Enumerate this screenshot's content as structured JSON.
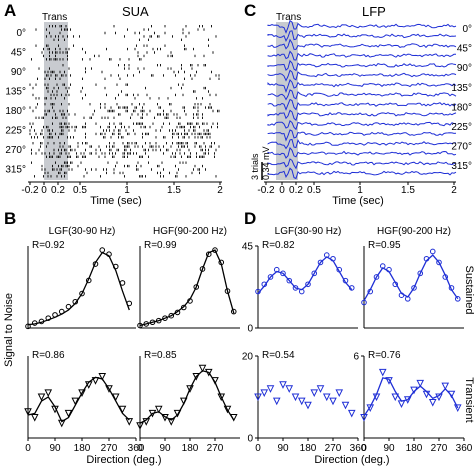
{
  "colors": {
    "black": "#000000",
    "blue": "#1f2fd6",
    "trans_shade": "#c8cbd0"
  },
  "panelA": {
    "letter": "A",
    "title": "SUA",
    "trans_label": "Trans",
    "directions": [
      "0°",
      "45°",
      "90°",
      "135°",
      "180°",
      "225°",
      "270°",
      "315°"
    ],
    "xticks": [
      "-0.2",
      "0",
      "0.2",
      "0.5",
      "1",
      "1.5",
      "2"
    ],
    "xlabel": "Time (sec)"
  },
  "panelC": {
    "letter": "C",
    "title": "LFP",
    "trans_label": "Trans",
    "directions": [
      "0°",
      "45°",
      "90°",
      "135°",
      "180°",
      "225°",
      "270°",
      "315°"
    ],
    "xticks": [
      "-0.2",
      "0",
      "0.2",
      "0.5",
      "1",
      "1.5",
      "2"
    ],
    "xlabel": "Time (sec)",
    "scale_trials": "3 trials",
    "scale_mv": "0.34 mV"
  },
  "panelB": {
    "letter": "B",
    "ylabel": "Signal to Noise"
  },
  "panelD": {
    "letter": "D",
    "side_sustained": "Sustained",
    "side_transient": "Transient"
  },
  "chart_data": [
    {
      "id": "B-sustained-LGF",
      "type": "scatter",
      "title": "LGF(30-90 Hz)",
      "annotation": "R=0.92",
      "xlabel": "",
      "ylabel": "Signal to Noise",
      "xlim": [
        0,
        360
      ],
      "marker": "circle",
      "color": "#000000",
      "x": [
        0,
        22.5,
        45,
        67.5,
        90,
        112.5,
        135,
        157.5,
        180,
        202.5,
        225,
        247.5,
        270,
        292.5,
        315,
        337.5
      ],
      "y": [
        0.02,
        0.06,
        0.08,
        0.12,
        0.16,
        0.2,
        0.26,
        0.32,
        0.42,
        0.58,
        0.78,
        0.95,
        0.9,
        0.75,
        0.55,
        0.3
      ],
      "fit": [
        0.04,
        0.05,
        0.07,
        0.1,
        0.13,
        0.17,
        0.22,
        0.3,
        0.42,
        0.6,
        0.8,
        0.92,
        0.88,
        0.7,
        0.45,
        0.22
      ]
    },
    {
      "id": "B-sustained-HGF",
      "type": "scatter",
      "title": "HGF(90-200 Hz)",
      "annotation": "R=0.99",
      "xlabel": "",
      "ylabel": "",
      "xlim": [
        0,
        360
      ],
      "marker": "circle",
      "color": "#000000",
      "x": [
        0,
        22.5,
        45,
        67.5,
        90,
        112.5,
        135,
        157.5,
        180,
        202.5,
        225,
        247.5,
        270,
        292.5,
        315,
        337.5
      ],
      "y": [
        0.03,
        0.05,
        0.07,
        0.09,
        0.12,
        0.15,
        0.19,
        0.25,
        0.33,
        0.5,
        0.72,
        0.9,
        0.95,
        0.8,
        0.45,
        0.2
      ],
      "fit": [
        0.03,
        0.05,
        0.07,
        0.09,
        0.12,
        0.15,
        0.2,
        0.26,
        0.35,
        0.5,
        0.72,
        0.92,
        0.95,
        0.78,
        0.45,
        0.18
      ]
    },
    {
      "id": "B-transient-LGF",
      "type": "scatter",
      "title": "",
      "annotation": "R=0.86",
      "xlabel": "",
      "ylabel": "Signal to Noise",
      "xlim": [
        0,
        360
      ],
      "marker": "triangle-down",
      "color": "#000000",
      "xticks": [
        "0",
        "90",
        "180",
        "270",
        "360"
      ],
      "x": [
        0,
        22.5,
        45,
        67.5,
        90,
        112.5,
        135,
        157.5,
        180,
        202.5,
        225,
        247.5,
        270,
        292.5,
        315,
        337.5
      ],
      "y": [
        0.32,
        0.25,
        0.5,
        0.55,
        0.35,
        0.18,
        0.3,
        0.45,
        0.55,
        0.65,
        0.7,
        0.75,
        0.6,
        0.5,
        0.35,
        0.2
      ],
      "fit": [
        0.28,
        0.3,
        0.45,
        0.5,
        0.38,
        0.2,
        0.25,
        0.4,
        0.55,
        0.68,
        0.74,
        0.72,
        0.6,
        0.45,
        0.3,
        0.22
      ]
    },
    {
      "id": "B-transient-HGF",
      "type": "scatter",
      "title": "",
      "annotation": "R=0.85",
      "xlabel": "",
      "ylabel": "",
      "xlim": [
        0,
        360
      ],
      "marker": "triangle-down",
      "color": "#000000",
      "xticks": [
        "0",
        "90",
        "180",
        "270"
      ],
      "x": [
        0,
        22.5,
        45,
        67.5,
        90,
        112.5,
        135,
        157.5,
        180,
        202.5,
        225,
        247.5,
        270,
        292.5,
        315,
        337.5
      ],
      "y": [
        0.15,
        0.2,
        0.3,
        0.35,
        0.25,
        0.2,
        0.3,
        0.45,
        0.6,
        0.75,
        0.85,
        0.8,
        0.7,
        0.5,
        0.35,
        0.25
      ],
      "fit": [
        0.18,
        0.22,
        0.3,
        0.32,
        0.26,
        0.22,
        0.28,
        0.42,
        0.6,
        0.75,
        0.82,
        0.8,
        0.68,
        0.5,
        0.34,
        0.22
      ]
    },
    {
      "id": "D-sustained-LGF",
      "type": "scatter",
      "title": "LGF(30-90 Hz)",
      "annotation": "R=0.82",
      "xlabel": "",
      "ylabel": "",
      "xlim": [
        0,
        360
      ],
      "ylim": [
        0,
        45
      ],
      "yticks": [
        "0",
        "45"
      ],
      "marker": "circle",
      "color": "#1f2fd6",
      "x": [
        0,
        22.5,
        45,
        67.5,
        90,
        112.5,
        135,
        157.5,
        180,
        202.5,
        225,
        247.5,
        270,
        292.5,
        315,
        337.5
      ],
      "y": [
        20,
        24,
        28,
        32,
        30,
        26,
        22,
        20,
        24,
        30,
        36,
        40,
        38,
        32,
        26,
        22
      ],
      "fit": [
        19,
        23,
        28,
        31,
        30,
        26,
        22,
        21,
        24,
        30,
        36,
        39,
        37,
        31,
        25,
        21
      ]
    },
    {
      "id": "D-sustained-HGF",
      "type": "scatter",
      "title": "HGF(90-200 Hz)",
      "annotation": "R=0.95",
      "xlabel": "",
      "ylabel": "",
      "xlim": [
        0,
        360
      ],
      "ylim": [
        0,
        45
      ],
      "marker": "circle",
      "color": "#1f2fd6",
      "x": [
        0,
        22.5,
        45,
        67.5,
        90,
        112.5,
        135,
        157.5,
        180,
        202.5,
        225,
        247.5,
        270,
        292.5,
        315,
        337.5
      ],
      "y": [
        14,
        20,
        28,
        34,
        32,
        24,
        18,
        16,
        22,
        30,
        38,
        42,
        36,
        28,
        22,
        16
      ],
      "fit": [
        15,
        21,
        28,
        33,
        31,
        25,
        19,
        17,
        22,
        30,
        37,
        40,
        36,
        29,
        21,
        16
      ]
    },
    {
      "id": "D-transient-LGF",
      "type": "scatter",
      "title": "",
      "annotation": "R=0.54",
      "xlabel": "",
      "ylabel": "",
      "xlim": [
        0,
        360
      ],
      "ylim": [
        0,
        20
      ],
      "yticks": [
        "0",
        "20"
      ],
      "xticks": [
        "0",
        "90",
        "180",
        "270",
        "360"
      ],
      "marker": "triangle-down",
      "color": "#1f2fd6",
      "x": [
        0,
        22.5,
        45,
        67.5,
        90,
        112.5,
        135,
        157.5,
        180,
        202.5,
        225,
        247.5,
        270,
        292.5,
        315,
        337.5
      ],
      "y": [
        10,
        11,
        12,
        9,
        13,
        12,
        10,
        9,
        8,
        11,
        12,
        10,
        9,
        11,
        8,
        6
      ]
    },
    {
      "id": "D-transient-HGF",
      "type": "scatter",
      "title": "",
      "annotation": "R=0.76",
      "xlabel": "",
      "ylabel": "",
      "xlim": [
        0,
        360
      ],
      "ylim": [
        0,
        6
      ],
      "yticks": [
        "6"
      ],
      "xticks": [
        "0",
        "90",
        "180",
        "270",
        "360"
      ],
      "marker": "triangle-down",
      "color": "#1f2fd6",
      "x": [
        0,
        22.5,
        45,
        67.5,
        90,
        112.5,
        135,
        157.5,
        180,
        202.5,
        225,
        247.5,
        270,
        292.5,
        315,
        337.5
      ],
      "y": [
        1.5,
        2.2,
        3.0,
        4.8,
        4.2,
        3.0,
        2.5,
        2.8,
        3.5,
        4.0,
        3.2,
        2.6,
        3.0,
        3.8,
        3.2,
        2.2
      ],
      "fit": [
        1.6,
        2.3,
        3.2,
        4.4,
        4.3,
        3.4,
        2.7,
        2.8,
        3.4,
        3.8,
        3.4,
        2.9,
        3.1,
        3.6,
        3.1,
        2.2
      ]
    }
  ],
  "shared_axis": {
    "xlabel": "Direction (deg.)",
    "xlabel_left": "Direction (deg.)",
    "xlabel_right": "Direction (deg.)"
  }
}
